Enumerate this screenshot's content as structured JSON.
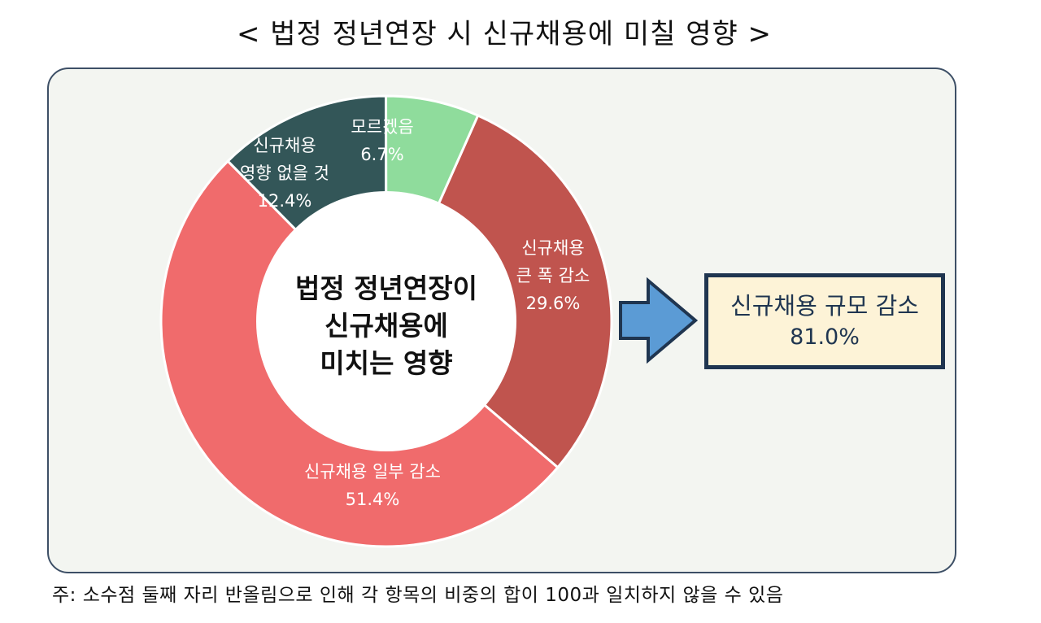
{
  "title": "< 법정 정년연장 시 신규채용에 미칠 영향 >",
  "chart_data": {
    "type": "pie",
    "title": "< 법정 정년연장 시 신규채용에 미칠 영향 >",
    "center_label": [
      "법정 정년연장이",
      "신규채용에",
      "미치는 영향"
    ],
    "unit": "%",
    "slices": [
      {
        "label_lines": [
          "신규채용",
          "큰 폭 감소"
        ],
        "value": 29.6,
        "value_text": "29.6%",
        "color": "#c0544e"
      },
      {
        "label_lines": [
          "신규채용 일부 감소"
        ],
        "value": 51.4,
        "value_text": "51.4%",
        "color": "#f06b6c"
      },
      {
        "label_lines": [
          "신규채용",
          "영향 없을 것"
        ],
        "value": 12.4,
        "value_text": "12.4%",
        "color": "#335658"
      },
      {
        "label_lines": [
          "모르겠음"
        ],
        "value": 6.7,
        "value_text": "6.7%",
        "color": "#8fdc9c"
      }
    ]
  },
  "callout": {
    "line1": "신규채용 규모 감소",
    "line2": "81.0%",
    "arrow_color": "#5b9bd5",
    "border_color": "#1f3550",
    "fill_color": "#fdf3d7"
  },
  "footnote": "주: 소수점 둘째 자리 반올림으로 인해 각 항목의 비중의 합이 100과 일치하지 않을 수 있음"
}
